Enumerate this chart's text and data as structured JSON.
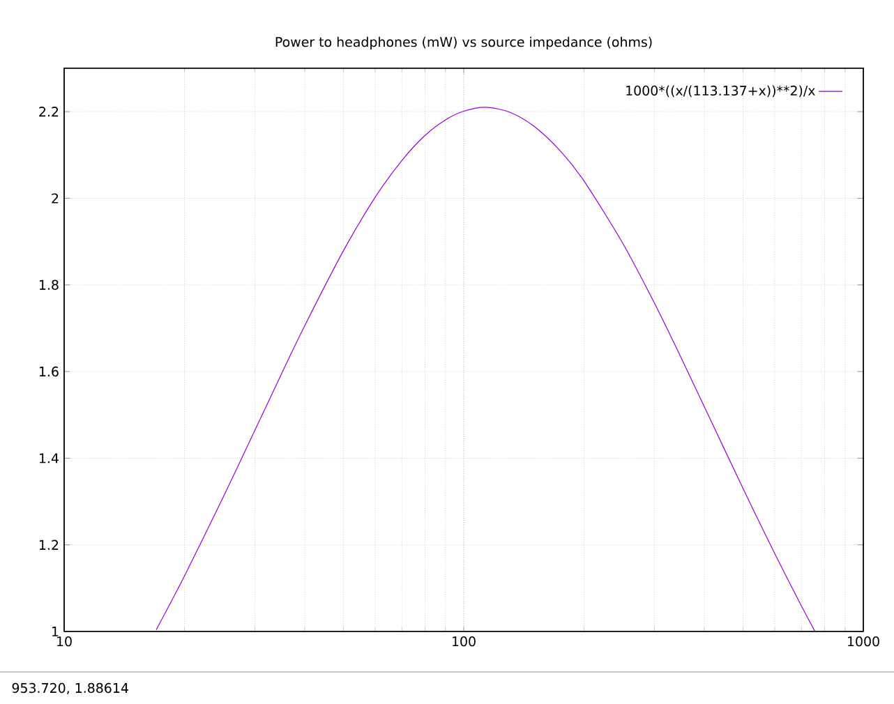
{
  "chart_data": {
    "type": "line",
    "title": "Power to headphones (mW) vs source impedance (ohms)",
    "x": [
      17,
      20,
      25,
      30,
      35,
      40,
      50,
      60,
      70,
      80,
      90,
      100,
      113.137,
      130,
      150,
      175,
      200,
      250,
      300,
      350,
      400,
      500,
      600,
      700,
      756
    ],
    "series": [
      {
        "name": "1000*((x/(113.137+x))**2)/x",
        "color": "#9400d3",
        "values": [
          1.004,
          1.128,
          1.31,
          1.464,
          1.595,
          1.706,
          1.879,
          2.002,
          2.087,
          2.145,
          2.181,
          2.201,
          2.21,
          2.199,
          2.166,
          2.108,
          2.04,
          1.896,
          1.758,
          1.632,
          1.519,
          1.33,
          1.18,
          1.059,
          1.001
        ]
      }
    ],
    "log": "x",
    "xlim": [
      10,
      1000
    ],
    "xticks": [
      10,
      100,
      1000
    ],
    "ylim": [
      1,
      2.3
    ],
    "yticks": [
      1,
      1.2,
      1.4,
      1.6,
      1.8,
      2,
      2.2
    ],
    "grid": true,
    "legend": "top right",
    "marker": "none",
    "line_style": "solid",
    "annotations": [
      "953.720,  1.88614"
    ]
  }
}
